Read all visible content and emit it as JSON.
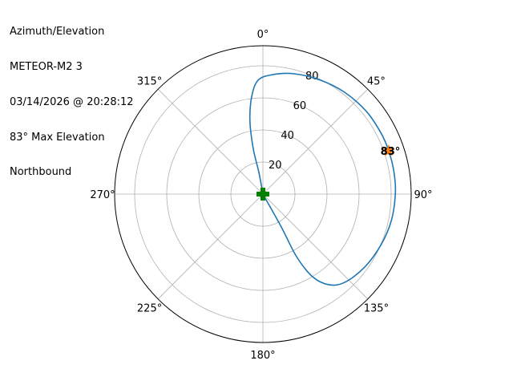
{
  "chart_data": {
    "type": "polar-line",
    "title_lines": [
      "Azimuth/Elevation",
      "METEOR-M2 3",
      "03/14/2026 @ 20:28:12",
      "83° Max Elevation",
      "Northbound"
    ],
    "theta_zero": "north",
    "theta_direction": "clockwise",
    "theta_ticks": [
      0,
      45,
      90,
      135,
      180,
      225,
      270,
      315
    ],
    "theta_tick_labels": [
      "0°",
      "45°",
      "90°",
      "135°",
      "180°",
      "225°",
      "270°",
      "315°"
    ],
    "r_ticks": [
      20,
      40,
      60,
      80
    ],
    "r_tick_labels": [
      "20",
      "40",
      "60",
      "80"
    ],
    "r_tick_label_angle": 22.5,
    "rlim": [
      0,
      92.5
    ],
    "grid": true,
    "track": {
      "color": "#1f77b4",
      "points": [
        [
          0,
          0
        ],
        [
          349.5,
          13.7
        ],
        [
          348,
          29.1
        ],
        [
          350,
          46.7
        ],
        [
          353.5,
          61.4
        ],
        [
          357.6,
          71.1
        ],
        [
          4.6,
          74.7
        ],
        [
          14.6,
          77.5
        ],
        [
          26.9,
          79.6
        ],
        [
          38.8,
          81.4
        ],
        [
          51.3,
          82.6
        ],
        [
          62.5,
          82.9
        ],
        [
          71,
          83
        ],
        [
          80.7,
          82.9
        ],
        [
          90,
          82.6
        ],
        [
          101.6,
          81.8
        ],
        [
          113,
          80.2
        ],
        [
          125.6,
          78.1
        ],
        [
          137.2,
          75
        ],
        [
          144,
          69.8
        ],
        [
          149,
          60.1
        ],
        [
          151.7,
          44.3
        ],
        [
          150.8,
          24.6
        ],
        [
          150.6,
          9.2
        ],
        [
          0,
          0
        ]
      ]
    },
    "max_marker": {
      "azimuth": 71,
      "r": 83,
      "label": "83°",
      "color": "#ff7f0e",
      "marker": "star"
    },
    "start_marker": {
      "azimuth": 0,
      "r": 0,
      "color": "#008000",
      "marker": "plus"
    }
  }
}
